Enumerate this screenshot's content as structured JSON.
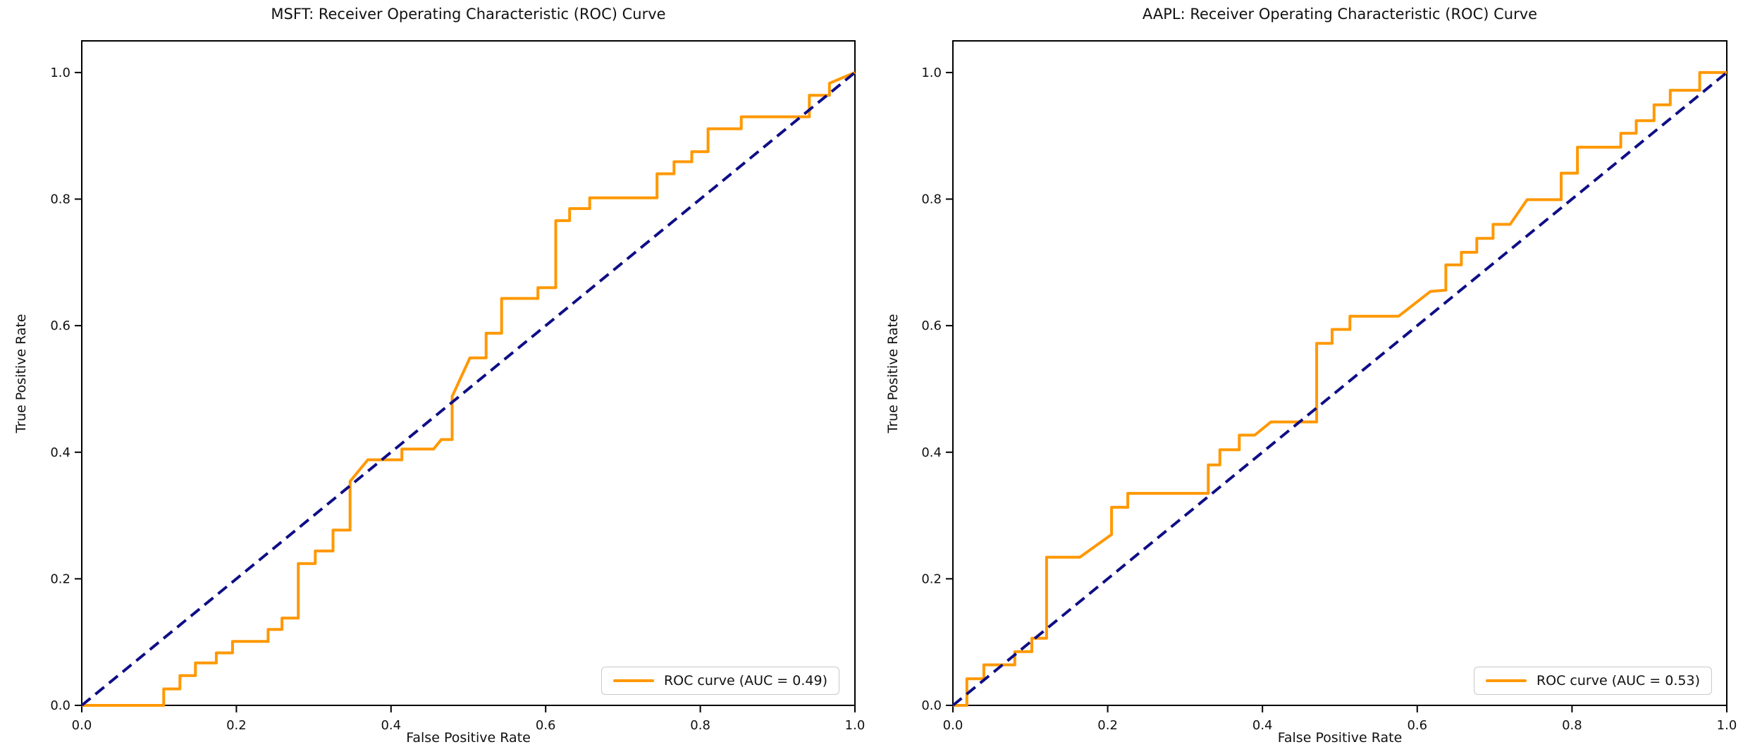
{
  "figure": {
    "background": "#ffffff"
  },
  "chart_data": [
    {
      "type": "line",
      "id": "msft-roc",
      "title": "MSFT: Receiver Operating Characteristic (ROC) Curve",
      "xlabel": "False Positive Rate",
      "ylabel": "True Positive Rate",
      "xlim": [
        0,
        1.0
      ],
      "ylim": [
        0,
        1.05
      ],
      "grid": false,
      "x_tick_labels": [
        "0.0",
        "0.2",
        "0.4",
        "0.6",
        "0.8",
        "1.0"
      ],
      "y_tick_labels": [
        "0.0",
        "0.2",
        "0.4",
        "0.6",
        "0.8",
        "1.0"
      ],
      "legend": {
        "label": "ROC curve (AUC = 0.49)",
        "position": "lower right"
      },
      "auc": 0.49,
      "colors": {
        "roc_curve": "#ff9800",
        "chance_diagonal": "#0e0e86",
        "spine": "#000000"
      },
      "series": [
        {
          "name": "ROC curve (AUC = 0.49)",
          "style": "solid",
          "points": [
            [
              0.0,
              0.0
            ],
            [
              0.106,
              0.0
            ],
            [
              0.106,
              0.026
            ],
            [
              0.127,
              0.026
            ],
            [
              0.127,
              0.047
            ],
            [
              0.147,
              0.047
            ],
            [
              0.147,
              0.067
            ],
            [
              0.174,
              0.067
            ],
            [
              0.174,
              0.083
            ],
            [
              0.195,
              0.083
            ],
            [
              0.195,
              0.101
            ],
            [
              0.241,
              0.101
            ],
            [
              0.241,
              0.12
            ],
            [
              0.259,
              0.12
            ],
            [
              0.259,
              0.138
            ],
            [
              0.28,
              0.138
            ],
            [
              0.28,
              0.224
            ],
            [
              0.302,
              0.224
            ],
            [
              0.302,
              0.244
            ],
            [
              0.325,
              0.244
            ],
            [
              0.325,
              0.277
            ],
            [
              0.347,
              0.277
            ],
            [
              0.347,
              0.354
            ],
            [
              0.37,
              0.388
            ],
            [
              0.414,
              0.388
            ],
            [
              0.414,
              0.405
            ],
            [
              0.455,
              0.405
            ],
            [
              0.465,
              0.42
            ],
            [
              0.479,
              0.42
            ],
            [
              0.479,
              0.488
            ],
            [
              0.502,
              0.549
            ],
            [
              0.523,
              0.549
            ],
            [
              0.523,
              0.588
            ],
            [
              0.543,
              0.588
            ],
            [
              0.543,
              0.643
            ],
            [
              0.59,
              0.643
            ],
            [
              0.59,
              0.66
            ],
            [
              0.613,
              0.66
            ],
            [
              0.613,
              0.766
            ],
            [
              0.631,
              0.766
            ],
            [
              0.631,
              0.785
            ],
            [
              0.657,
              0.785
            ],
            [
              0.657,
              0.802
            ],
            [
              0.744,
              0.802
            ],
            [
              0.744,
              0.84
            ],
            [
              0.766,
              0.84
            ],
            [
              0.766,
              0.859
            ],
            [
              0.789,
              0.859
            ],
            [
              0.789,
              0.875
            ],
            [
              0.81,
              0.875
            ],
            [
              0.81,
              0.911
            ],
            [
              0.853,
              0.911
            ],
            [
              0.853,
              0.93
            ],
            [
              0.941,
              0.93
            ],
            [
              0.941,
              0.964
            ],
            [
              0.967,
              0.964
            ],
            [
              0.967,
              0.983
            ],
            [
              1.0,
              1.0
            ]
          ]
        },
        {
          "name": "chance diagonal",
          "style": "dashed",
          "points": [
            [
              0.0,
              0.0
            ],
            [
              1.0,
              1.0
            ]
          ]
        }
      ]
    },
    {
      "type": "line",
      "id": "aapl-roc",
      "title": "AAPL: Receiver Operating Characteristic (ROC) Curve",
      "xlabel": "False Positive Rate",
      "ylabel": "True Positive Rate",
      "xlim": [
        0,
        1.0
      ],
      "ylim": [
        0,
        1.05
      ],
      "grid": false,
      "x_tick_labels": [
        "0.0",
        "0.2",
        "0.4",
        "0.6",
        "0.8",
        "1.0"
      ],
      "y_tick_labels": [
        "0.0",
        "0.2",
        "0.4",
        "0.6",
        "0.8",
        "1.0"
      ],
      "legend": {
        "label": "ROC curve (AUC = 0.53)",
        "position": "lower right"
      },
      "auc": 0.53,
      "colors": {
        "roc_curve": "#ff9800",
        "chance_diagonal": "#0e0e86",
        "spine": "#000000"
      },
      "series": [
        {
          "name": "ROC curve (AUC = 0.53)",
          "style": "solid",
          "points": [
            [
              0.0,
              0.0
            ],
            [
              0.018,
              0.0
            ],
            [
              0.018,
              0.042
            ],
            [
              0.04,
              0.042
            ],
            [
              0.04,
              0.064
            ],
            [
              0.08,
              0.064
            ],
            [
              0.08,
              0.085
            ],
            [
              0.102,
              0.085
            ],
            [
              0.102,
              0.106
            ],
            [
              0.121,
              0.106
            ],
            [
              0.121,
              0.234
            ],
            [
              0.164,
              0.234
            ],
            [
              0.205,
              0.27
            ],
            [
              0.205,
              0.313
            ],
            [
              0.226,
              0.313
            ],
            [
              0.226,
              0.335
            ],
            [
              0.33,
              0.335
            ],
            [
              0.33,
              0.38
            ],
            [
              0.345,
              0.38
            ],
            [
              0.345,
              0.404
            ],
            [
              0.37,
              0.404
            ],
            [
              0.37,
              0.427
            ],
            [
              0.39,
              0.427
            ],
            [
              0.411,
              0.448
            ],
            [
              0.47,
              0.448
            ],
            [
              0.47,
              0.572
            ],
            [
              0.49,
              0.572
            ],
            [
              0.49,
              0.594
            ],
            [
              0.513,
              0.594
            ],
            [
              0.513,
              0.615
            ],
            [
              0.576,
              0.615
            ],
            [
              0.617,
              0.654
            ],
            [
              0.637,
              0.656
            ],
            [
              0.637,
              0.696
            ],
            [
              0.657,
              0.696
            ],
            [
              0.657,
              0.716
            ],
            [
              0.677,
              0.716
            ],
            [
              0.677,
              0.738
            ],
            [
              0.698,
              0.738
            ],
            [
              0.698,
              0.76
            ],
            [
              0.72,
              0.76
            ],
            [
              0.742,
              0.799
            ],
            [
              0.786,
              0.799
            ],
            [
              0.786,
              0.841
            ],
            [
              0.807,
              0.841
            ],
            [
              0.807,
              0.882
            ],
            [
              0.863,
              0.882
            ],
            [
              0.863,
              0.904
            ],
            [
              0.883,
              0.904
            ],
            [
              0.883,
              0.924
            ],
            [
              0.906,
              0.924
            ],
            [
              0.906,
              0.949
            ],
            [
              0.927,
              0.949
            ],
            [
              0.927,
              0.972
            ],
            [
              0.965,
              0.972
            ],
            [
              0.965,
              1.0
            ],
            [
              1.0,
              1.0
            ]
          ]
        },
        {
          "name": "chance diagonal",
          "style": "dashed",
          "points": [
            [
              0.0,
              0.0
            ],
            [
              1.0,
              1.0
            ]
          ]
        }
      ]
    }
  ]
}
